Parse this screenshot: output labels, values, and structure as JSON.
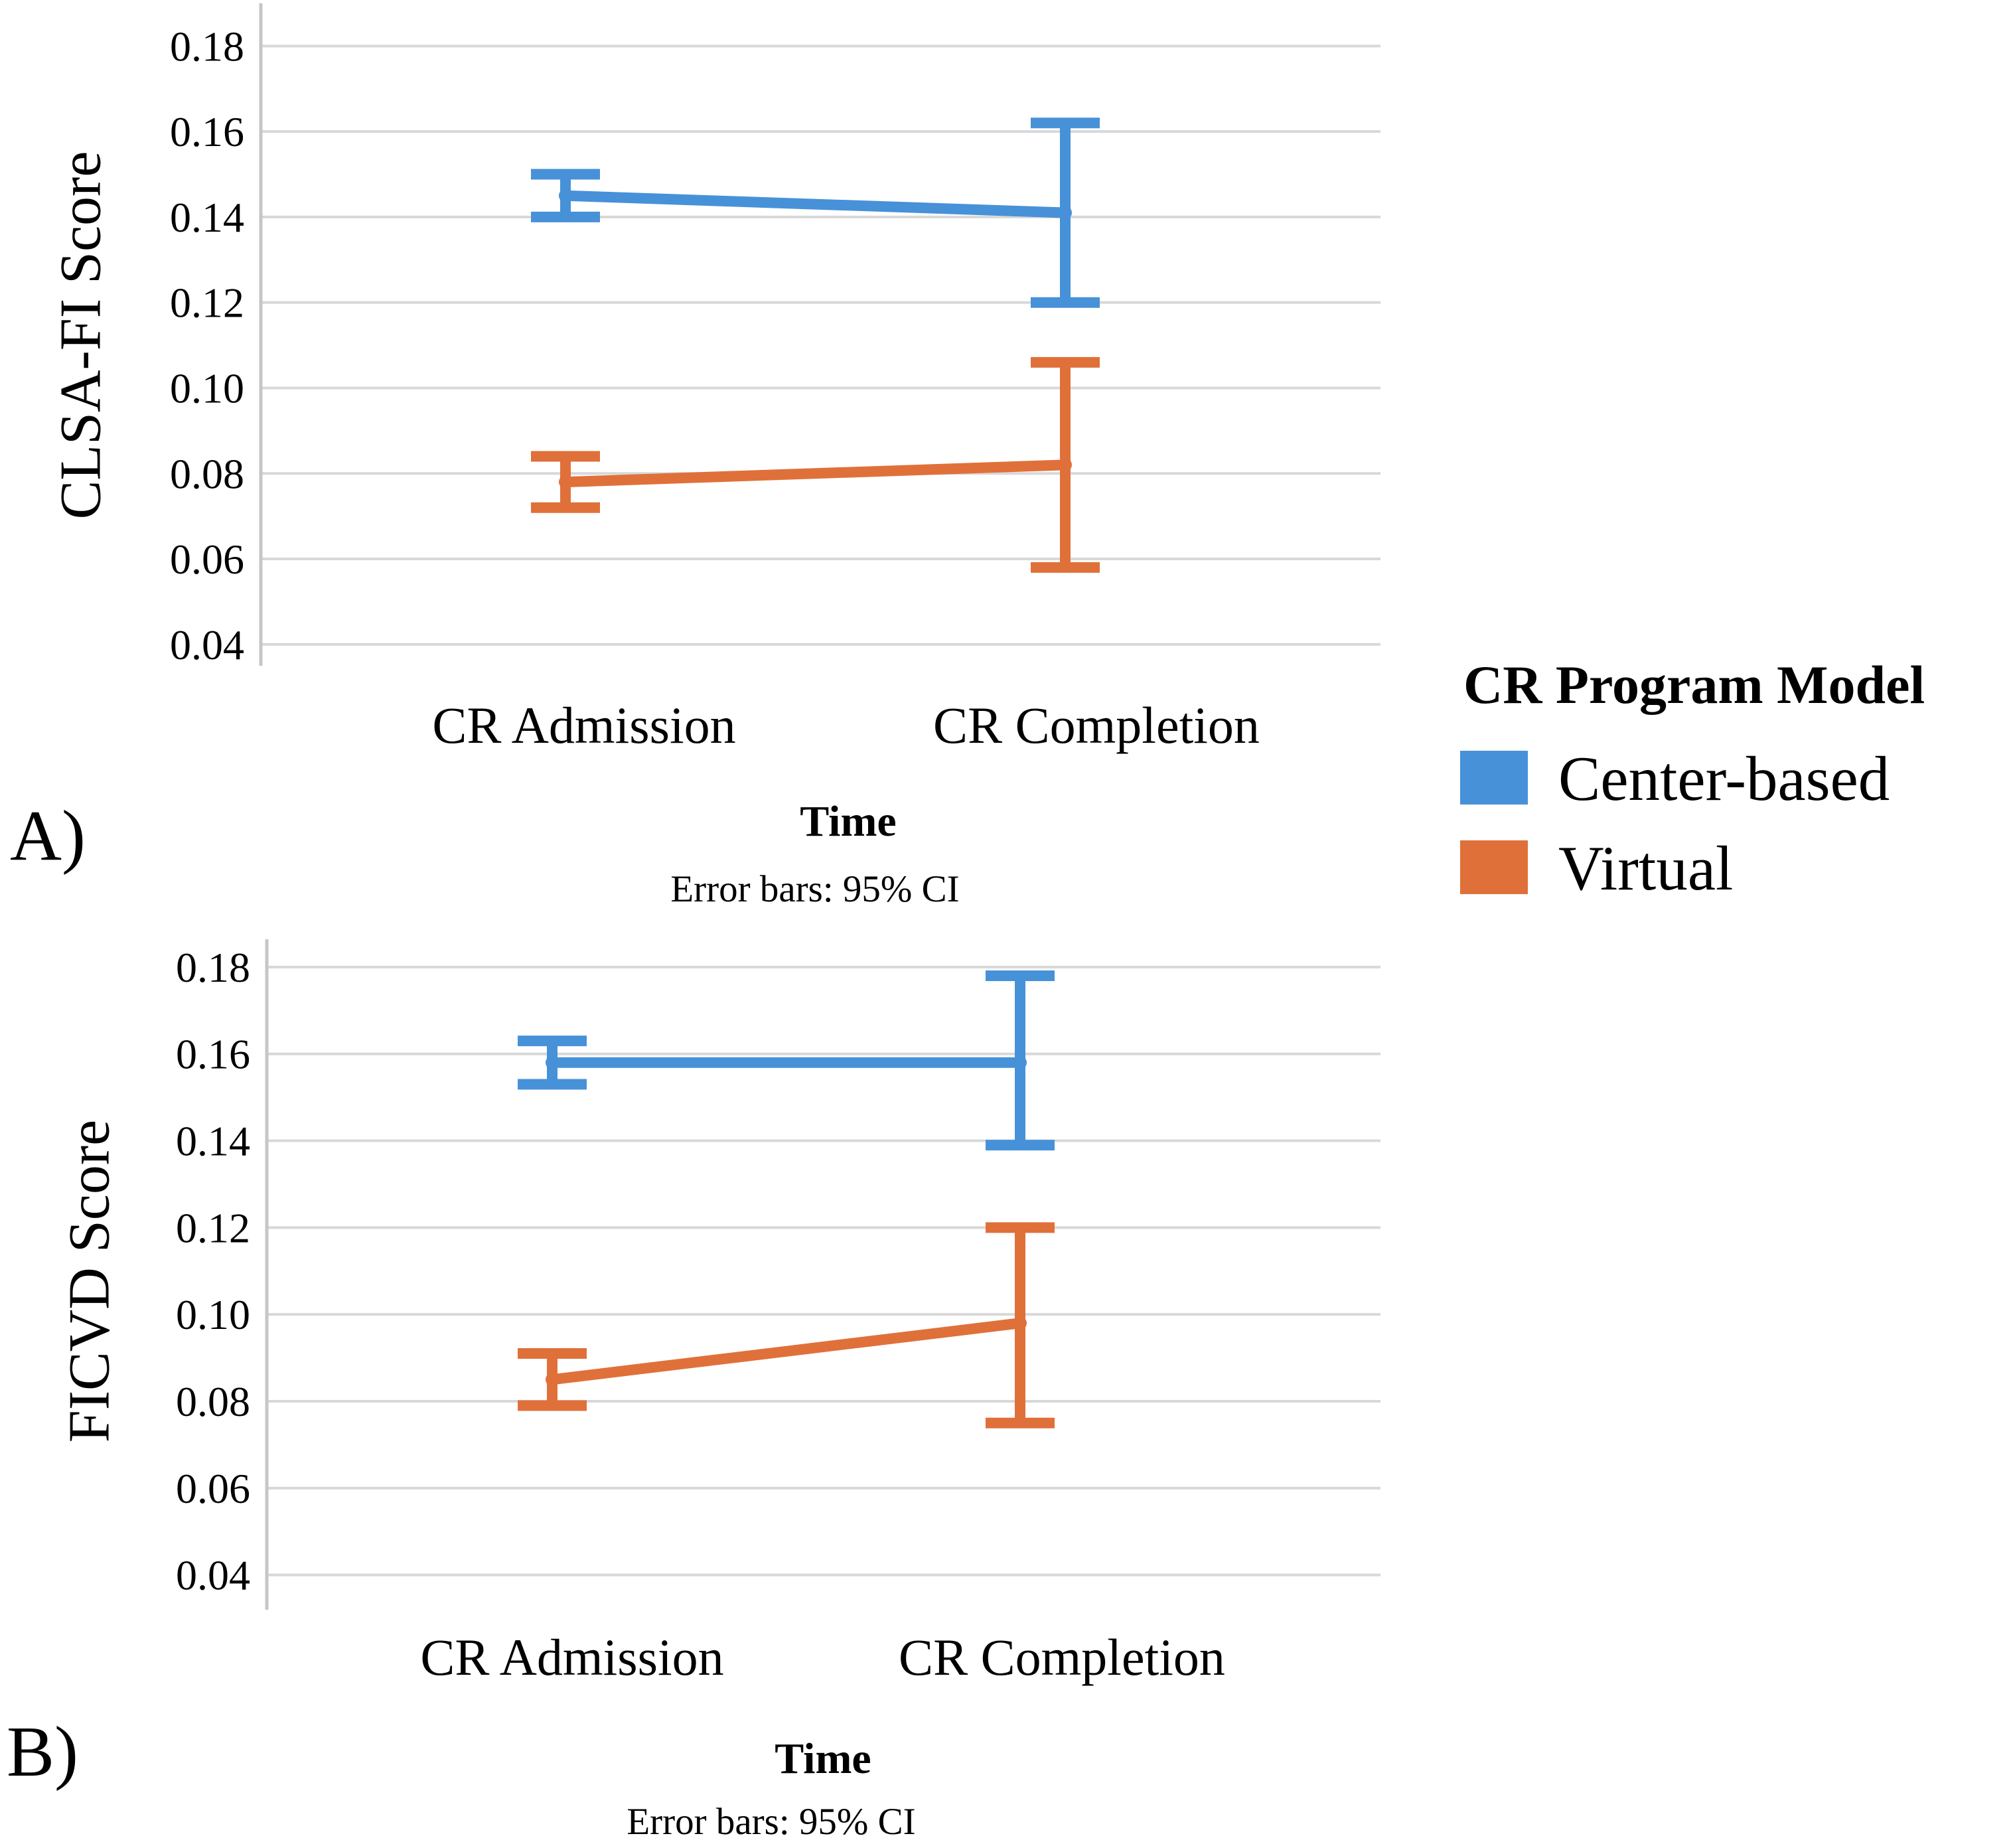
{
  "figure": {
    "background": "#ffffff",
    "panels": [
      {
        "panel_label": "A)",
        "y_axis_title": "CLSA-FI Score",
        "x_axis_title": "Time",
        "caption": "Error bars: 95% CI"
      },
      {
        "panel_label": "B)",
        "y_axis_title": "FICVD Score",
        "x_axis_title": "Time",
        "caption": "Error bars: 95% CI"
      }
    ]
  },
  "legend": {
    "title": "CR Program Model",
    "items": [
      {
        "label": "Center-based",
        "color": "#4791d8"
      },
      {
        "label": "Virtual",
        "color": "#e0703a"
      }
    ],
    "position": "right"
  },
  "colors": {
    "center_based": "#4791d8",
    "virtual": "#e0703a",
    "gridline": "#d8d8d8",
    "axis": "#c6c6c6",
    "text": "#000000"
  },
  "chart_data": [
    {
      "type": "line",
      "title": "",
      "x_categories": [
        "CR Admission",
        "CR Completion"
      ],
      "xlabel": "Time",
      "ylabel": "CLSA-FI Score",
      "yticks": [
        0.04,
        0.06,
        0.08,
        0.1,
        0.12,
        0.14,
        0.16,
        0.18
      ],
      "ylim": [
        0.035,
        0.19
      ],
      "grid": true,
      "error_bars": "95% CI",
      "legend_position": "right",
      "series": [
        {
          "name": "Center-based",
          "color": "#4791d8",
          "means": [
            0.145,
            0.141
          ],
          "ci_low": [
            0.14,
            0.12
          ],
          "ci_high": [
            0.15,
            0.162
          ]
        },
        {
          "name": "Virtual",
          "color": "#e0703a",
          "means": [
            0.078,
            0.082
          ],
          "ci_low": [
            0.072,
            0.058
          ],
          "ci_high": [
            0.084,
            0.106
          ]
        }
      ]
    },
    {
      "type": "line",
      "title": "",
      "x_categories": [
        "CR Admission",
        "CR Completion"
      ],
      "xlabel": "Time",
      "ylabel": "FICVD Score",
      "yticks": [
        0.04,
        0.06,
        0.08,
        0.1,
        0.12,
        0.14,
        0.16,
        0.18
      ],
      "ylim": [
        0.032,
        0.1864
      ],
      "grid": true,
      "error_bars": "95% CI",
      "legend_position": "right",
      "series": [
        {
          "name": "Center-based",
          "color": "#4791d8",
          "means": [
            0.158,
            0.158
          ],
          "ci_low": [
            0.153,
            0.139
          ],
          "ci_high": [
            0.163,
            0.178
          ]
        },
        {
          "name": "Virtual",
          "color": "#e0703a",
          "means": [
            0.085,
            0.098
          ],
          "ci_low": [
            0.079,
            0.075
          ],
          "ci_high": [
            0.091,
            0.12
          ]
        }
      ]
    }
  ]
}
